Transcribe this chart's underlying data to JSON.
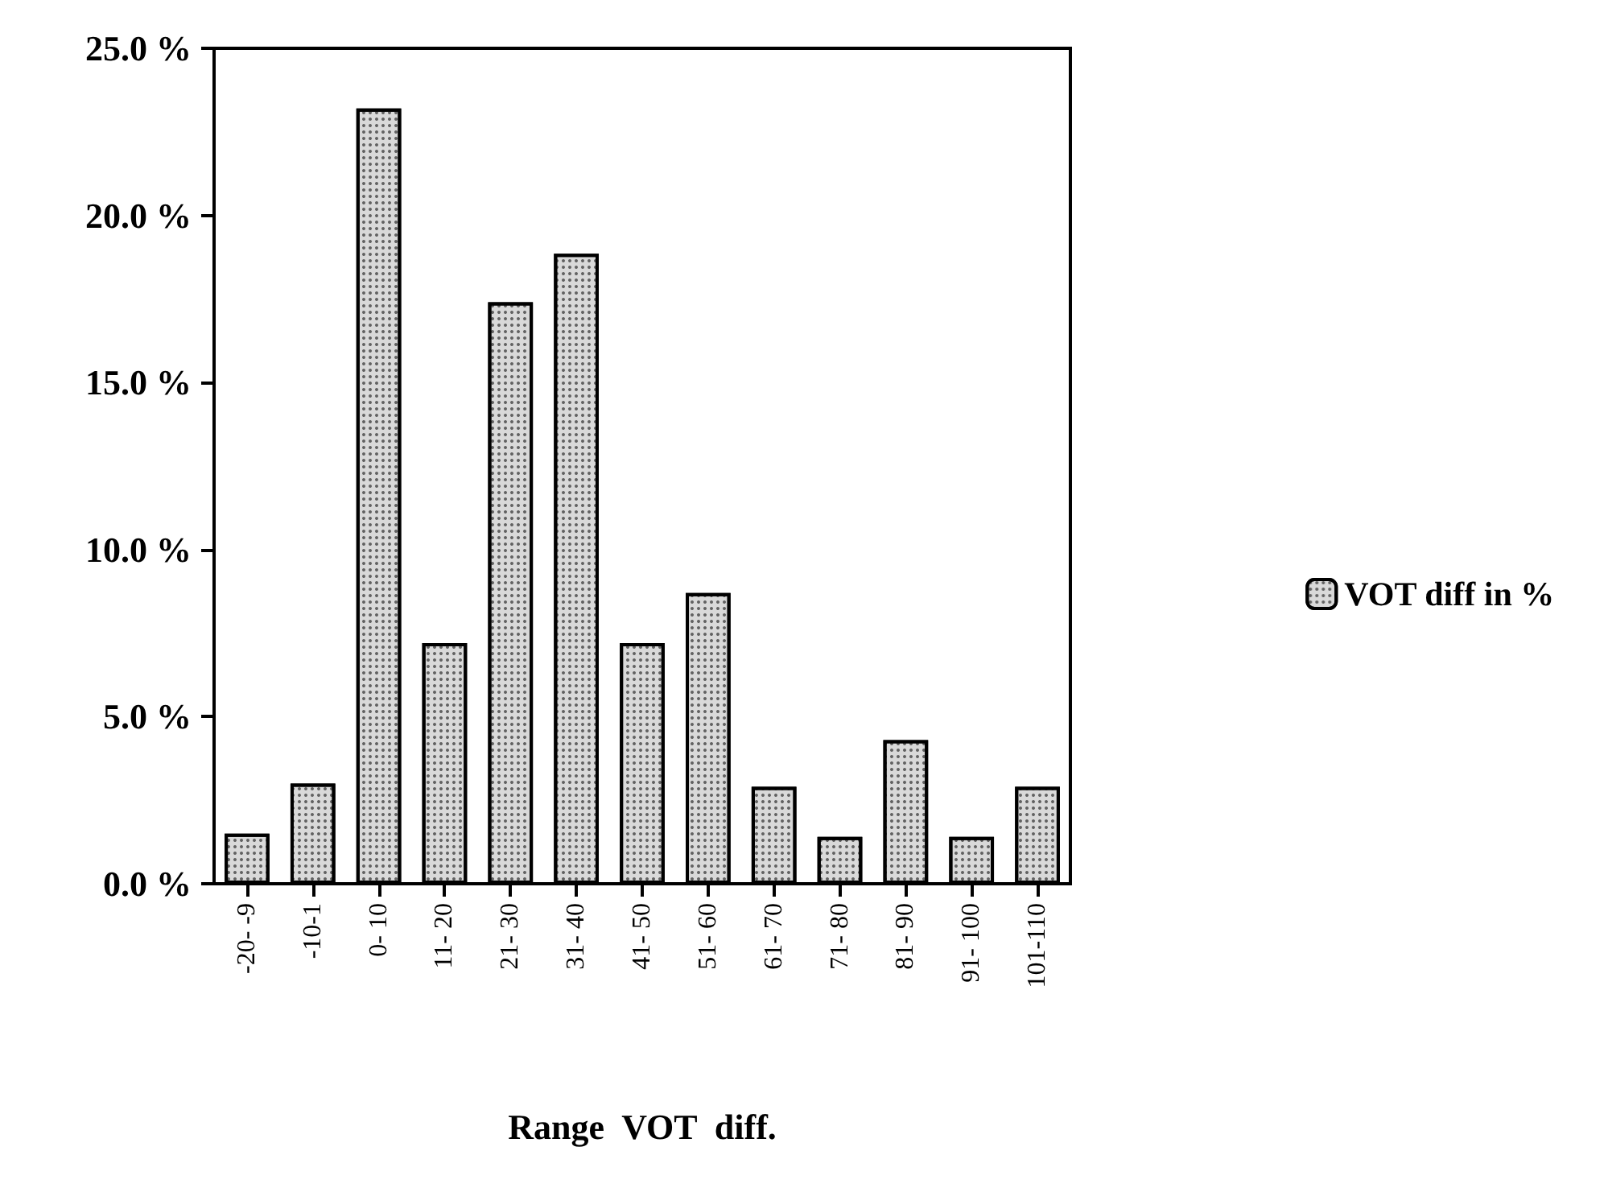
{
  "chart_data": {
    "type": "bar",
    "xlabel": "Range  VOT  diff.",
    "categories": [
      "-20- -9",
      "-10-1",
      "0- 10",
      "11- 20",
      "21- 30",
      "31- 40",
      "41- 50",
      "51- 60",
      "61- 70",
      "71- 80",
      "81- 90",
      "91- 100",
      "101-110"
    ],
    "series": [
      {
        "name": "VOT diff in %",
        "color": "#d9d9d9",
        "values": [
          1.5,
          3.0,
          23.2,
          7.2,
          17.4,
          18.85,
          7.2,
          8.7,
          2.9,
          1.4,
          4.3,
          1.4,
          2.9
        ]
      }
    ],
    "ylim": [
      0,
      25
    ],
    "yticks": [
      {
        "value": 0,
        "label": "0.0 %"
      },
      {
        "value": 5,
        "label": "5.0 %"
      },
      {
        "value": 10,
        "label": "10.0 %"
      },
      {
        "value": 15,
        "label": "15.0 %"
      },
      {
        "value": 20,
        "label": "20.0 %"
      },
      {
        "value": 25,
        "label": "25.0 %"
      }
    ],
    "grid": false,
    "legend": "right"
  }
}
